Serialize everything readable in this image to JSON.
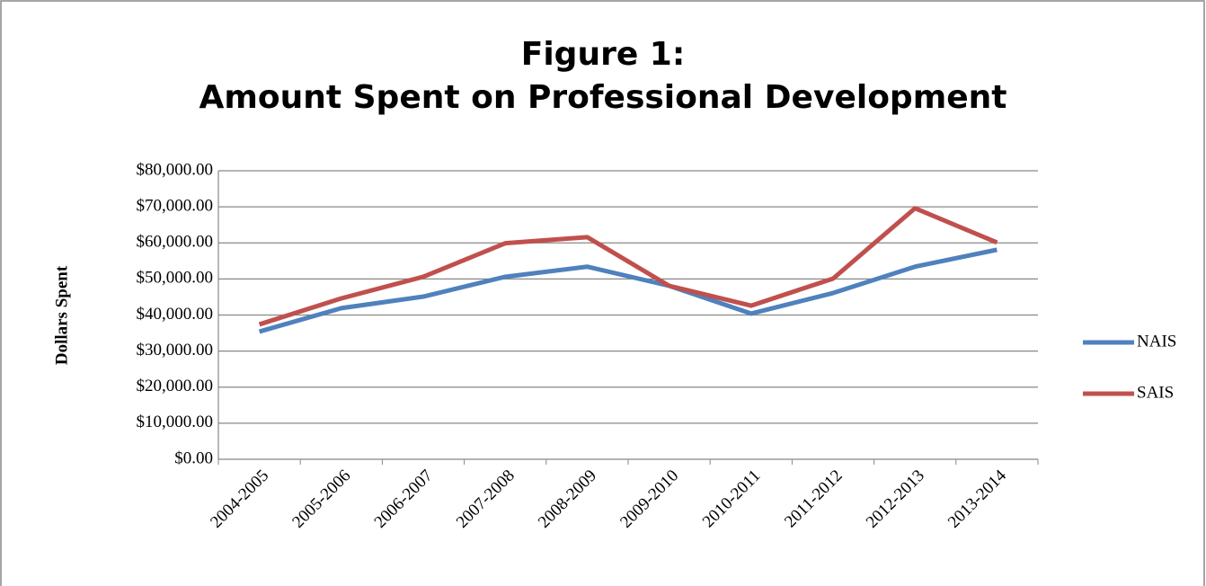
{
  "chart_data": {
    "type": "line",
    "title": [
      "Figure 1:",
      "Amount Spent on Professional Development"
    ],
    "y_label": "Dollars Spent",
    "categories": [
      "2004-2005",
      "2005-2006",
      "2006-2007",
      "2007-2008",
      "2008-2009",
      "2009-2010",
      "2010-2011",
      "2011-2012",
      "2012-2013",
      "2013-2014"
    ],
    "series": [
      {
        "name": "NAIS",
        "color": "#4f81bd",
        "values": [
          35400,
          41900,
          45100,
          50600,
          53400,
          48100,
          40400,
          46100,
          53400,
          58100
        ]
      },
      {
        "name": "SAIS",
        "color": "#c0504d",
        "values": [
          37400,
          44600,
          50600,
          59900,
          61600,
          48100,
          42600,
          50100,
          69600,
          60100
        ]
      }
    ],
    "ylim": [
      0,
      80000
    ],
    "yticks": [
      {
        "value": 0,
        "label": "$0.00"
      },
      {
        "value": 10000,
        "label": "$10,000.00"
      },
      {
        "value": 20000,
        "label": "$20,000.00"
      },
      {
        "value": 30000,
        "label": "$30,000.00"
      },
      {
        "value": 40000,
        "label": "$40,000.00"
      },
      {
        "value": 50000,
        "label": "$50,000.00"
      },
      {
        "value": 60000,
        "label": "$60,000.00"
      },
      {
        "value": 70000,
        "label": "$70,000.00"
      },
      {
        "value": 80000,
        "label": "$80,000.00"
      }
    ],
    "grid": true,
    "legend": "right"
  }
}
